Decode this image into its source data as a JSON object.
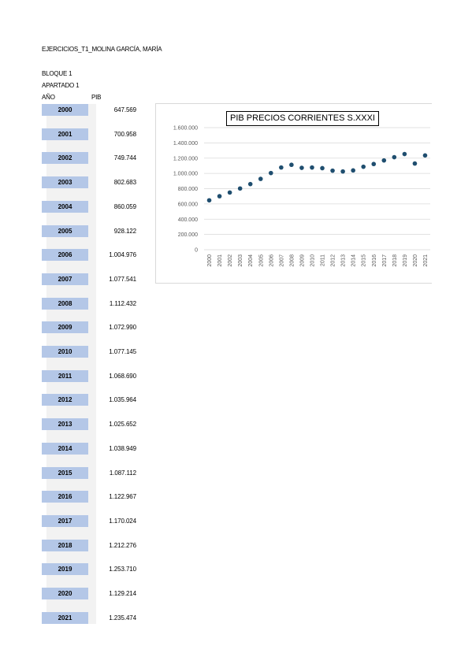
{
  "document": {
    "heading": "EJERCICIOS_T1_MOLINA GARCÍA, MARÍA",
    "block": "BLOQUE 1",
    "section": "APARTADO 1",
    "col_year": "AÑO",
    "col_pib": "PIB"
  },
  "table": {
    "rows": [
      {
        "year": "2000",
        "pib": "647.569"
      },
      {
        "year": "2001",
        "pib": "700.958"
      },
      {
        "year": "2002",
        "pib": "749.744"
      },
      {
        "year": "2003",
        "pib": "802.683"
      },
      {
        "year": "2004",
        "pib": "860.059"
      },
      {
        "year": "2005",
        "pib": "928.122"
      },
      {
        "year": "2006",
        "pib": "1.004.976"
      },
      {
        "year": "2007",
        "pib": "1.077.541"
      },
      {
        "year": "2008",
        "pib": "1.112.432"
      },
      {
        "year": "2009",
        "pib": "1.072.990"
      },
      {
        "year": "2010",
        "pib": "1.077.145"
      },
      {
        "year": "2011",
        "pib": "1.068.690"
      },
      {
        "year": "2012",
        "pib": "1.035.964"
      },
      {
        "year": "2013",
        "pib": "1.025.652"
      },
      {
        "year": "2014",
        "pib": "1.038.949"
      },
      {
        "year": "2015",
        "pib": "1.087.112"
      },
      {
        "year": "2016",
        "pib": "1.122.967"
      },
      {
        "year": "2017",
        "pib": "1.170.024"
      },
      {
        "year": "2018",
        "pib": "1.212.276"
      },
      {
        "year": "2019",
        "pib": "1.253.710"
      },
      {
        "year": "2020",
        "pib": "1.129.214"
      },
      {
        "year": "2021",
        "pib": "1.235.474"
      }
    ]
  },
  "chart_data": {
    "type": "scatter",
    "title": "PIB PRECIOS CORRIENTES S.XXXI",
    "x": [
      "2000",
      "2001",
      "2002",
      "2003",
      "2004",
      "2005",
      "2006",
      "2007",
      "2008",
      "2009",
      "2010",
      "2011",
      "2012",
      "2013",
      "2014",
      "2015",
      "2016",
      "2017",
      "2018",
      "2019",
      "2020",
      "2021"
    ],
    "y": [
      647569,
      700958,
      749744,
      802683,
      860059,
      928122,
      1004976,
      1077541,
      1112432,
      1072990,
      1077145,
      1068690,
      1035964,
      1025652,
      1038949,
      1087112,
      1122967,
      1170024,
      1212276,
      1253710,
      1129214,
      1235474
    ],
    "ylim": [
      0,
      1600000
    ],
    "yticks": [
      0,
      200000,
      400000,
      600000,
      800000,
      1000000,
      1200000,
      1400000,
      1600000
    ],
    "ytick_labels": [
      "0",
      "200.000",
      "400.000",
      "600.000",
      "800.000",
      "1.000.000",
      "1.200.000",
      "1.400.000",
      "1.600.000"
    ],
    "grid": true,
    "legend": false,
    "marker_color": "#1f4e6f",
    "grid_color": "#d9d9d9"
  }
}
